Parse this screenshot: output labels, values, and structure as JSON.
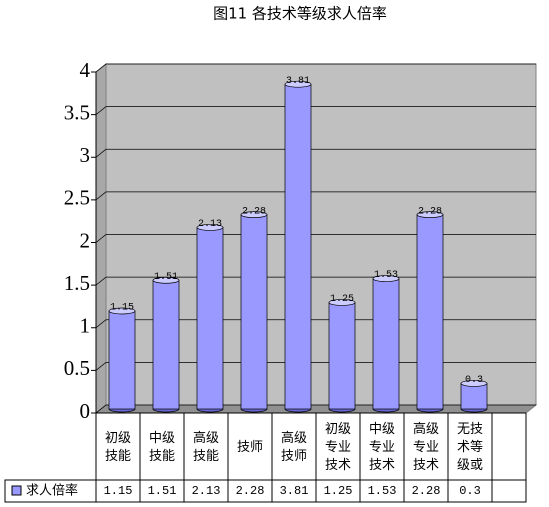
{
  "chart_data": {
    "type": "bar3d",
    "title": "图11 各技术等级求人倍率",
    "categories": [
      "初级技能",
      "中级技能",
      "高级技能",
      "技师",
      "高级技师",
      "初级专业技术",
      "中级专业技术",
      "高级专业技术",
      "无技术等级或"
    ],
    "series": [
      {
        "name": "求人倍率",
        "color": "#9999ff",
        "values": [
          1.15,
          1.51,
          2.13,
          2.28,
          3.81,
          1.25,
          1.53,
          2.28,
          0.3
        ],
        "value_labels": [
          "1.15",
          "1.51",
          "2.13",
          "2.28",
          "3.81",
          "1.25",
          "1.53",
          "2.28",
          "0.3"
        ]
      }
    ],
    "ylim": [
      0,
      4
    ],
    "yticks": [
      0,
      0.5,
      1,
      1.5,
      2,
      2.5,
      3,
      3.5,
      4
    ],
    "grid": true,
    "data_table": true
  }
}
